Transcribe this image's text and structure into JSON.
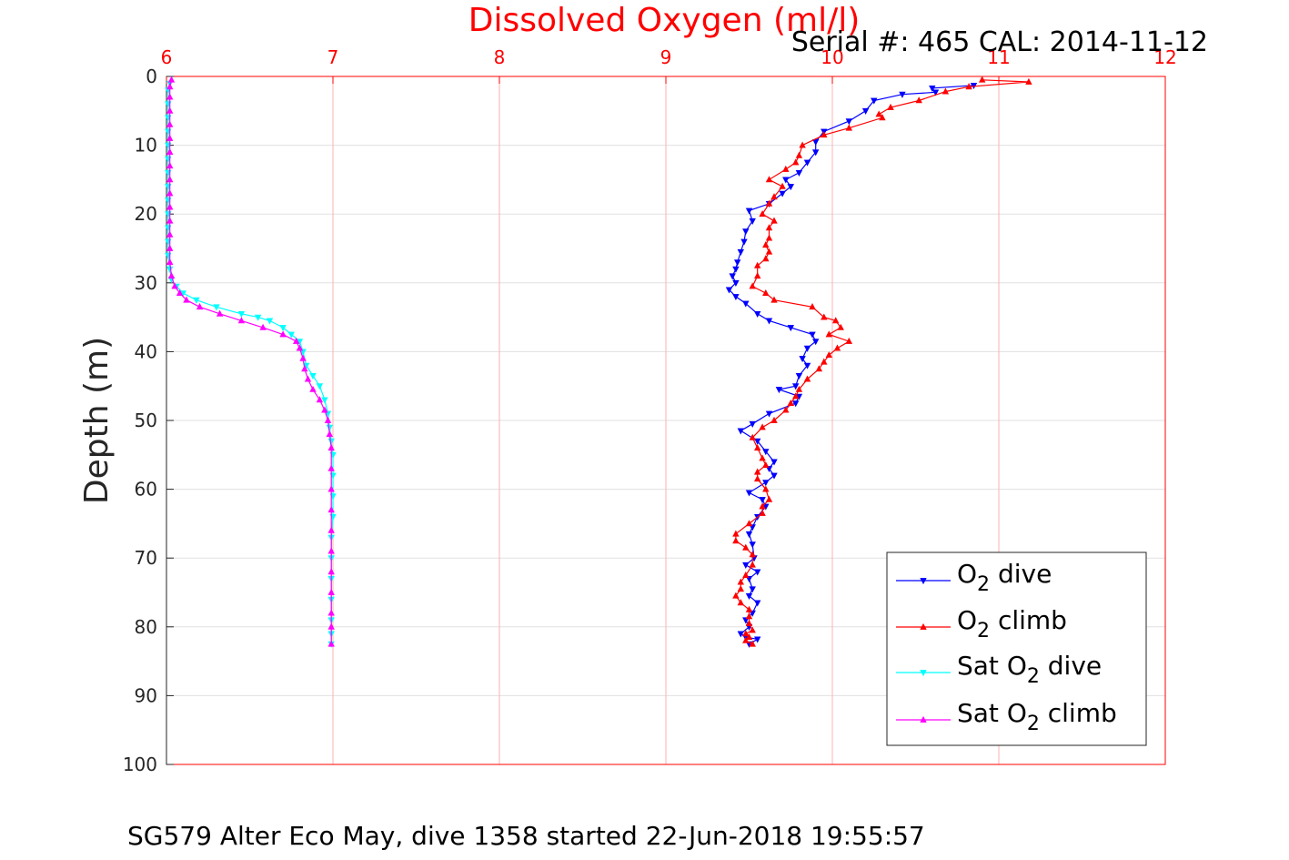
{
  "chart_data": {
    "type": "line",
    "title": "Dissolved Oxygen (ml/l)",
    "subtitle": "Serial #: 465  CAL: 2014-11-12",
    "footer": "SG579 Alter Eco May, dive 1358 started 22-Jun-2018 19:55:57",
    "xlabel": "",
    "ylabel": "Depth (m)",
    "xlim": [
      6,
      12
    ],
    "ylim": [
      0,
      100
    ],
    "y_reversed": true,
    "x_axis_position": "top",
    "x_ticks": [
      6,
      7,
      8,
      9,
      10,
      11,
      12
    ],
    "y_ticks": [
      0,
      10,
      20,
      30,
      40,
      50,
      60,
      70,
      80,
      90,
      100
    ],
    "grid": true,
    "legend_position": "bottom-right",
    "colors": {
      "title": "#ff0000",
      "x_tick_labels": "#ff0000",
      "o2_dive": "#0000ff",
      "o2_climb": "#ff0000",
      "sat_dive": "#00ffff",
      "sat_climb": "#ff00ff",
      "grid": "#e0e0e0",
      "red_grid": "#ffb0b0"
    },
    "legend": [
      {
        "key": "o2_dive",
        "base": "O",
        "sub": "2",
        "suffix": " dive",
        "prefix": ""
      },
      {
        "key": "o2_climb",
        "base": "O",
        "sub": "2",
        "suffix": " climb",
        "prefix": ""
      },
      {
        "key": "sat_dive",
        "base": "O",
        "sub": "2",
        "suffix": " dive",
        "prefix": "Sat "
      },
      {
        "key": "sat_climb",
        "base": "O",
        "sub": "2",
        "suffix": " climb",
        "prefix": "Sat "
      }
    ],
    "series": [
      {
        "key": "o2_dive",
        "marker": "down",
        "points": [
          [
            10.85,
            1.3
          ],
          [
            10.6,
            1.7
          ],
          [
            10.62,
            2.3
          ],
          [
            10.42,
            2.6
          ],
          [
            10.25,
            3.5
          ],
          [
            10.2,
            5
          ],
          [
            10.1,
            6.5
          ],
          [
            9.95,
            8
          ],
          [
            9.9,
            9.5
          ],
          [
            9.9,
            11
          ],
          [
            9.85,
            12.5
          ],
          [
            9.8,
            14
          ],
          [
            9.72,
            15
          ],
          [
            9.75,
            16
          ],
          [
            9.7,
            17
          ],
          [
            9.62,
            18.5
          ],
          [
            9.5,
            19.5
          ],
          [
            9.52,
            21
          ],
          [
            9.48,
            22.5
          ],
          [
            9.47,
            24
          ],
          [
            9.45,
            25.5
          ],
          [
            9.43,
            27
          ],
          [
            9.42,
            28
          ],
          [
            9.4,
            29
          ],
          [
            9.42,
            30
          ],
          [
            9.38,
            31
          ],
          [
            9.42,
            32
          ],
          [
            9.48,
            33
          ],
          [
            9.55,
            34.5
          ],
          [
            9.62,
            35.5
          ],
          [
            9.75,
            36.5
          ],
          [
            9.88,
            37.5
          ],
          [
            9.9,
            38.5
          ],
          [
            9.85,
            39.5
          ],
          [
            9.82,
            41
          ],
          [
            9.85,
            42
          ],
          [
            9.8,
            43.5
          ],
          [
            9.78,
            45
          ],
          [
            9.68,
            45.5
          ],
          [
            9.8,
            46.5
          ],
          [
            9.78,
            47.5
          ],
          [
            9.62,
            49
          ],
          [
            9.52,
            50.5
          ],
          [
            9.45,
            51.5
          ],
          [
            9.55,
            53
          ],
          [
            9.6,
            54.5
          ],
          [
            9.65,
            56
          ],
          [
            9.62,
            57
          ],
          [
            9.65,
            58
          ],
          [
            9.6,
            59
          ],
          [
            9.5,
            60.5
          ],
          [
            9.58,
            61.5
          ],
          [
            9.6,
            62.5
          ],
          [
            9.55,
            64
          ],
          [
            9.52,
            65.5
          ],
          [
            9.5,
            66.5
          ],
          [
            9.52,
            68
          ],
          [
            9.53,
            70
          ],
          [
            9.48,
            71
          ],
          [
            9.55,
            72
          ],
          [
            9.5,
            73
          ],
          [
            9.52,
            74.5
          ],
          [
            9.5,
            75.5
          ],
          [
            9.55,
            76.5
          ],
          [
            9.52,
            78
          ],
          [
            9.48,
            79
          ],
          [
            9.5,
            80
          ],
          [
            9.45,
            81
          ],
          [
            9.48,
            81.5
          ],
          [
            9.55,
            81.8
          ],
          [
            9.5,
            82.5
          ]
        ]
      },
      {
        "key": "o2_climb",
        "marker": "up",
        "points": [
          [
            10.9,
            0.5
          ],
          [
            11.18,
            0.8
          ],
          [
            10.82,
            1.5
          ],
          [
            10.68,
            2.2
          ],
          [
            10.52,
            3.5
          ],
          [
            10.35,
            4.5
          ],
          [
            10.28,
            5.5
          ],
          [
            10.3,
            6
          ],
          [
            10.1,
            7.5
          ],
          [
            9.95,
            8.5
          ],
          [
            9.82,
            10
          ],
          [
            9.8,
            11.5
          ],
          [
            9.78,
            12.5
          ],
          [
            9.72,
            13.5
          ],
          [
            9.62,
            15
          ],
          [
            9.7,
            16
          ],
          [
            9.65,
            17.5
          ],
          [
            9.62,
            18.5
          ],
          [
            9.58,
            20
          ],
          [
            9.65,
            21
          ],
          [
            9.62,
            22
          ],
          [
            9.62,
            23.5
          ],
          [
            9.6,
            24.5
          ],
          [
            9.62,
            25.5
          ],
          [
            9.6,
            26.5
          ],
          [
            9.55,
            27.5
          ],
          [
            9.55,
            29
          ],
          [
            9.52,
            30.5
          ],
          [
            9.6,
            31.5
          ],
          [
            9.65,
            32.5
          ],
          [
            9.88,
            33.5
          ],
          [
            9.95,
            35
          ],
          [
            10.02,
            35.5
          ],
          [
            10.05,
            36.5
          ],
          [
            9.98,
            37.5
          ],
          [
            10.1,
            38.5
          ],
          [
            10.03,
            39.5
          ],
          [
            9.98,
            40.5
          ],
          [
            9.95,
            41.5
          ],
          [
            9.92,
            42.5
          ],
          [
            9.85,
            44
          ],
          [
            9.8,
            45.5
          ],
          [
            9.78,
            46.5
          ],
          [
            9.75,
            47.5
          ],
          [
            9.72,
            48.5
          ],
          [
            9.65,
            50
          ],
          [
            9.58,
            51
          ],
          [
            9.52,
            52.5
          ],
          [
            9.55,
            54
          ],
          [
            9.58,
            55.5
          ],
          [
            9.6,
            56.5
          ],
          [
            9.55,
            57.5
          ],
          [
            9.55,
            58.5
          ],
          [
            9.6,
            60
          ],
          [
            9.62,
            61.5
          ],
          [
            9.58,
            62.5
          ],
          [
            9.58,
            63.5
          ],
          [
            9.5,
            65
          ],
          [
            9.42,
            66.5
          ],
          [
            9.42,
            67.5
          ],
          [
            9.48,
            68.5
          ],
          [
            9.52,
            69.5
          ],
          [
            9.52,
            71
          ],
          [
            9.48,
            72.5
          ],
          [
            9.45,
            73.5
          ],
          [
            9.45,
            74.5
          ],
          [
            9.42,
            75.5
          ],
          [
            9.45,
            76.5
          ],
          [
            9.5,
            77.5
          ],
          [
            9.5,
            78.5
          ],
          [
            9.5,
            79.5
          ],
          [
            9.52,
            80.5
          ],
          [
            9.48,
            81
          ],
          [
            9.5,
            81.5
          ],
          [
            9.48,
            82
          ],
          [
            9.52,
            82.5
          ]
        ]
      },
      {
        "key": "sat_dive",
        "marker": "down",
        "points": [
          [
            6.02,
            1
          ],
          [
            6.01,
            2
          ],
          [
            6.01,
            4
          ],
          [
            6.01,
            6
          ],
          [
            6.01,
            8
          ],
          [
            6.01,
            10
          ],
          [
            6.01,
            12
          ],
          [
            6.01,
            14
          ],
          [
            6.01,
            16
          ],
          [
            6.01,
            18
          ],
          [
            6.01,
            20
          ],
          [
            6.01,
            22
          ],
          [
            6.01,
            24
          ],
          [
            6.01,
            26
          ],
          [
            6.02,
            28
          ],
          [
            6.03,
            29.5
          ],
          [
            6.06,
            30.5
          ],
          [
            6.1,
            31.5
          ],
          [
            6.18,
            32.5
          ],
          [
            6.3,
            33.5
          ],
          [
            6.45,
            34.5
          ],
          [
            6.55,
            35
          ],
          [
            6.62,
            35.5
          ],
          [
            6.7,
            36.5
          ],
          [
            6.75,
            37.5
          ],
          [
            6.8,
            38.5
          ],
          [
            6.82,
            40
          ],
          [
            6.84,
            42
          ],
          [
            6.88,
            43.5
          ],
          [
            6.92,
            45
          ],
          [
            6.95,
            47
          ],
          [
            6.97,
            49
          ],
          [
            6.98,
            51
          ],
          [
            6.99,
            53
          ],
          [
            7.0,
            55
          ],
          [
            7.0,
            58
          ],
          [
            7.0,
            61
          ],
          [
            7.0,
            64
          ],
          [
            6.99,
            67
          ],
          [
            6.99,
            70
          ],
          [
            6.99,
            73
          ],
          [
            6.99,
            76
          ],
          [
            6.99,
            79
          ],
          [
            6.99,
            81
          ],
          [
            6.99,
            82.5
          ]
        ]
      },
      {
        "key": "sat_climb",
        "marker": "up",
        "points": [
          [
            6.03,
            0.5
          ],
          [
            6.02,
            1.5
          ],
          [
            6.02,
            3
          ],
          [
            6.02,
            5
          ],
          [
            6.02,
            7
          ],
          [
            6.02,
            9
          ],
          [
            6.02,
            11
          ],
          [
            6.02,
            13
          ],
          [
            6.02,
            15
          ],
          [
            6.02,
            17
          ],
          [
            6.02,
            19
          ],
          [
            6.02,
            21
          ],
          [
            6.02,
            23
          ],
          [
            6.02,
            25
          ],
          [
            6.02,
            27
          ],
          [
            6.03,
            29
          ],
          [
            6.05,
            30.5
          ],
          [
            6.08,
            31.5
          ],
          [
            6.12,
            32.5
          ],
          [
            6.2,
            33.5
          ],
          [
            6.32,
            34.5
          ],
          [
            6.45,
            35.5
          ],
          [
            6.58,
            36.5
          ],
          [
            6.7,
            37.5
          ],
          [
            6.78,
            38.5
          ],
          [
            6.8,
            39.5
          ],
          [
            6.82,
            41
          ],
          [
            6.83,
            42.5
          ],
          [
            6.85,
            44
          ],
          [
            6.88,
            45.5
          ],
          [
            6.92,
            47
          ],
          [
            6.95,
            48.5
          ],
          [
            6.97,
            50
          ],
          [
            6.98,
            52
          ],
          [
            6.99,
            54
          ],
          [
            6.99,
            57
          ],
          [
            6.99,
            60
          ],
          [
            6.99,
            63
          ],
          [
            6.99,
            66
          ],
          [
            6.99,
            69
          ],
          [
            6.99,
            72
          ],
          [
            6.99,
            75
          ],
          [
            6.99,
            78
          ],
          [
            6.99,
            80
          ],
          [
            6.99,
            82.5
          ]
        ]
      }
    ]
  }
}
